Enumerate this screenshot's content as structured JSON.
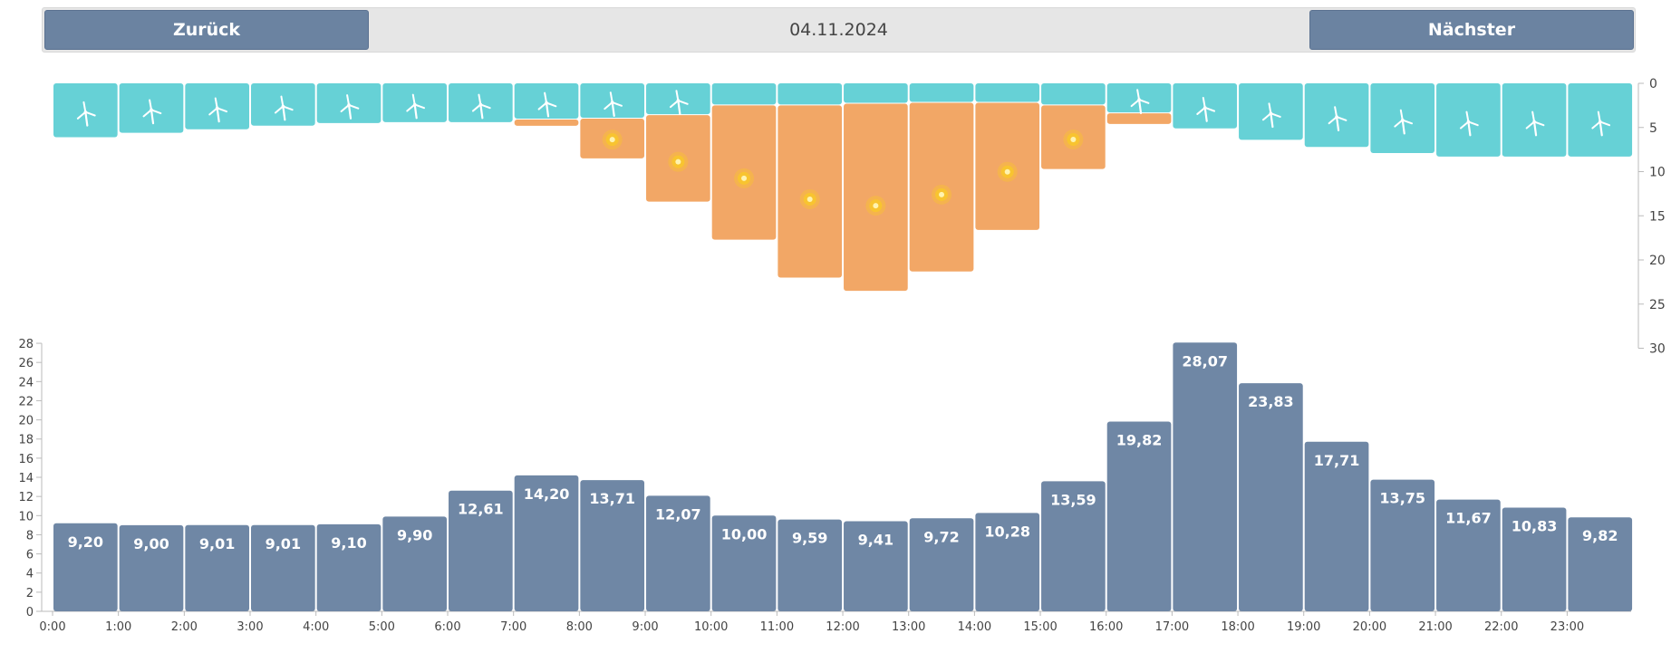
{
  "nav": {
    "prev_label": "Zurück",
    "next_label": "Nächster",
    "date": "04.11.2024"
  },
  "colors": {
    "wind": "#66d1d6",
    "solar": "#f2a766",
    "price": "#6f87a5",
    "sun_outer": "#f8c430",
    "sun_inner": "#fff3b0",
    "turbine": "#ffffff"
  },
  "icons": {
    "wind": "wind-turbine-icon",
    "solar": "sun-icon"
  },
  "chart_data": [
    {
      "type": "bar",
      "orientation": "downward",
      "x": [
        "0:00",
        "1:00",
        "2:00",
        "3:00",
        "4:00",
        "5:00",
        "6:00",
        "7:00",
        "8:00",
        "9:00",
        "10:00",
        "11:00",
        "12:00",
        "13:00",
        "14:00",
        "15:00",
        "16:00",
        "17:00",
        "18:00",
        "19:00",
        "20:00",
        "21:00",
        "22:00",
        "23:00"
      ],
      "series": [
        {
          "values": [
            6.1,
            5.6,
            5.2,
            4.8,
            4.5,
            4.4,
            4.4,
            4.0,
            3.9,
            3.5,
            2.4,
            2.4,
            2.2,
            2.1,
            2.1,
            2.4,
            3.3,
            5.1,
            6.4,
            7.2,
            7.9,
            8.3,
            8.3,
            8.3
          ]
        },
        {
          "values": [
            0.0,
            0.0,
            0.0,
            0.0,
            0.0,
            0.0,
            0.0,
            0.7,
            4.5,
            9.8,
            15.2,
            19.5,
            21.2,
            19.1,
            14.4,
            7.2,
            1.2,
            0.0,
            0.0,
            0.0,
            0.0,
            0.0,
            0.0,
            0.0
          ]
        }
      ],
      "stacked": true,
      "ylim": [
        0,
        30
      ],
      "yticks": [
        0,
        5,
        10,
        15,
        20,
        25,
        30
      ],
      "y_axis_side": "right"
    },
    {
      "type": "bar",
      "x": [
        "0:00",
        "1:00",
        "2:00",
        "3:00",
        "4:00",
        "5:00",
        "6:00",
        "7:00",
        "8:00",
        "9:00",
        "10:00",
        "11:00",
        "12:00",
        "13:00",
        "14:00",
        "15:00",
        "16:00",
        "17:00",
        "18:00",
        "19:00",
        "20:00",
        "21:00",
        "22:00",
        "23:00"
      ],
      "values": [
        9.2,
        9.0,
        9.01,
        9.01,
        9.1,
        9.9,
        12.61,
        14.2,
        13.71,
        12.07,
        10.0,
        9.59,
        9.41,
        9.72,
        10.28,
        13.59,
        19.82,
        28.07,
        23.83,
        17.71,
        13.75,
        11.67,
        10.83,
        9.82
      ],
      "labels": [
        "9,20",
        "9,00",
        "9,01",
        "9,01",
        "9,10",
        "9,90",
        "12,61",
        "14,20",
        "13,71",
        "12,07",
        "10,00",
        "9,59",
        "9,41",
        "9,72",
        "10,28",
        "13,59",
        "19,82",
        "28,07",
        "23,83",
        "17,71",
        "13,75",
        "11,67",
        "10,83",
        "9,82"
      ],
      "ylim": [
        0,
        28
      ],
      "yticks": [
        0,
        2,
        4,
        6,
        8,
        10,
        12,
        14,
        16,
        18,
        20,
        22,
        24,
        26,
        28
      ],
      "y_axis_side": "left"
    }
  ]
}
